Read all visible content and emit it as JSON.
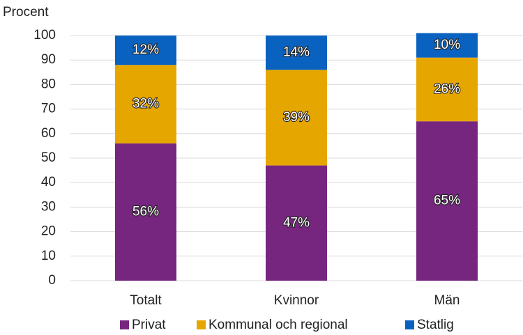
{
  "chart_data": {
    "type": "stacked_bar",
    "y_label": "Procent",
    "categories": [
      "Totalt",
      "Kvinnor",
      "Män"
    ],
    "series": [
      {
        "name": "Privat",
        "color": "#76267f",
        "values": [
          56,
          47,
          65
        ]
      },
      {
        "name": "Kommunal och regional",
        "color": "#e6a600",
        "values": [
          32,
          39,
          26
        ]
      },
      {
        "name": "Statlig",
        "color": "#0a62c0",
        "values": [
          12,
          14,
          10
        ]
      }
    ],
    "value_labels": [
      [
        "56%",
        "47%",
        "65%"
      ],
      [
        "32%",
        "39%",
        "26%"
      ],
      [
        "12%",
        "14%",
        "10%"
      ]
    ],
    "ylim": [
      0,
      100
    ],
    "yticks": [
      0,
      10,
      20,
      30,
      40,
      50,
      60,
      70,
      80,
      90,
      100
    ],
    "grid": true
  }
}
